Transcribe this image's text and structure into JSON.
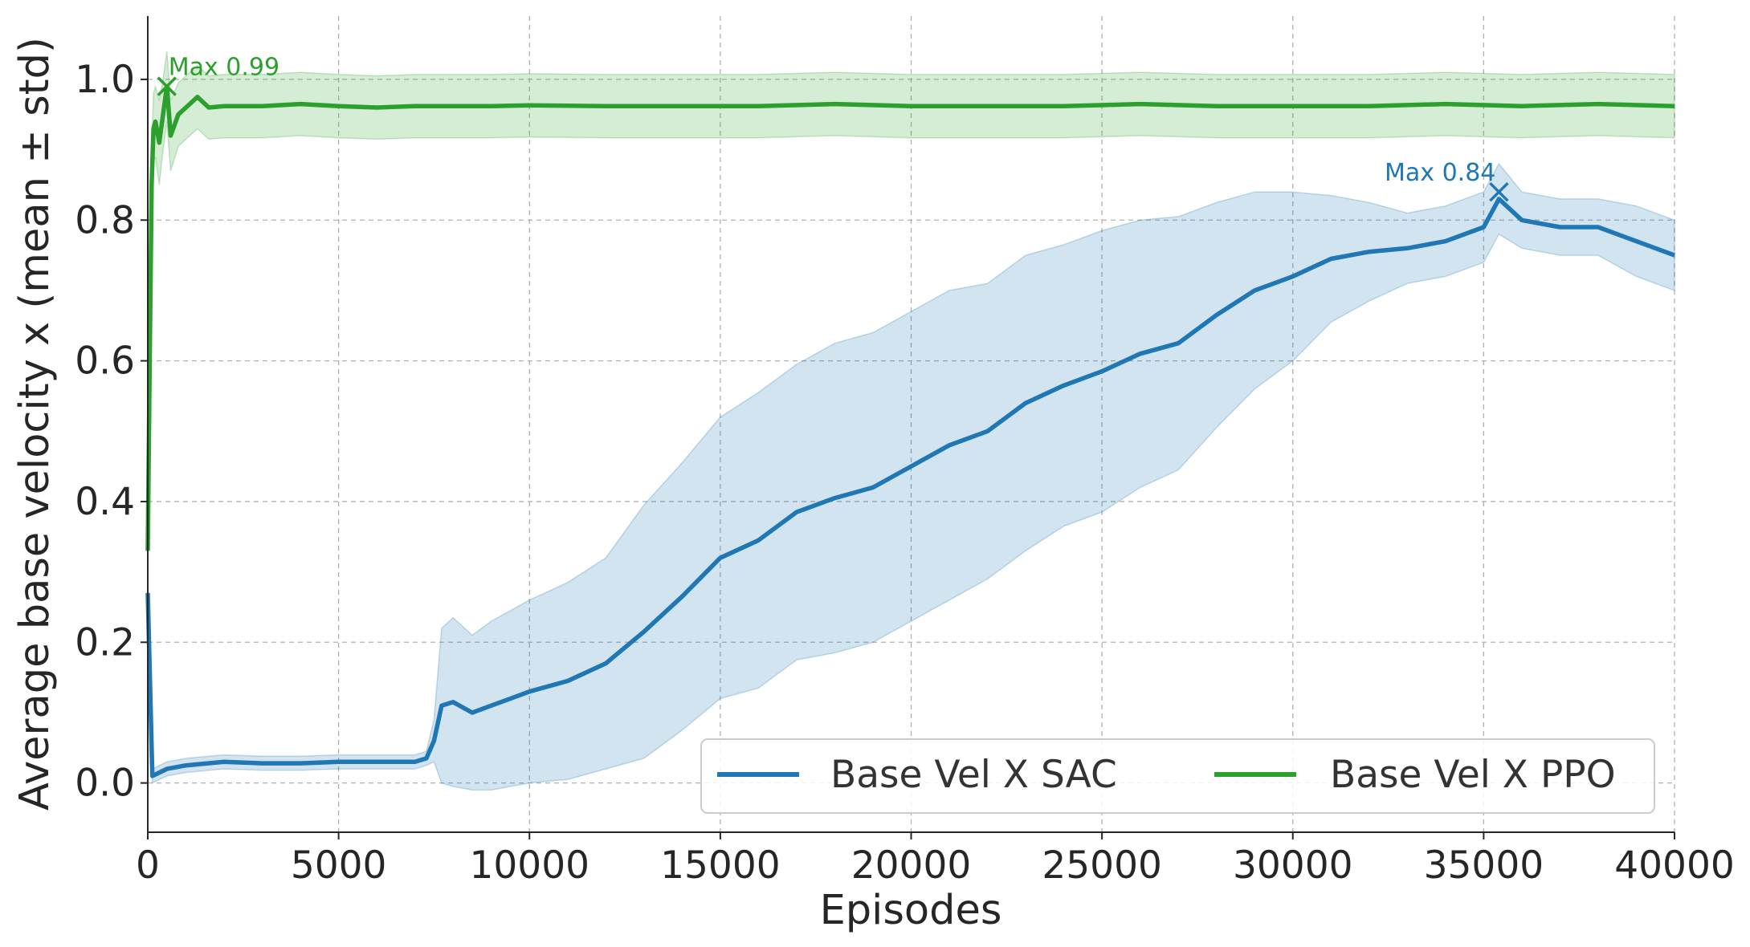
{
  "chart_data": {
    "type": "line",
    "title": "",
    "xlabel": "Episodes",
    "ylabel": "Average base velocity x (mean ± std)",
    "xlim": [
      0,
      40000
    ],
    "ylim": [
      -0.07,
      1.09
    ],
    "xticks": [
      0,
      5000,
      10000,
      15000,
      20000,
      25000,
      30000,
      35000,
      40000
    ],
    "xtick_labels": [
      "0",
      "5000",
      "10000",
      "15000",
      "20000",
      "25000",
      "30000",
      "35000",
      "40000"
    ],
    "yticks": [
      0.0,
      0.2,
      0.4,
      0.6,
      0.8,
      1.0
    ],
    "ytick_labels": [
      "0.0",
      "0.2",
      "0.4",
      "0.6",
      "0.8",
      "1.0"
    ],
    "grid": true,
    "legend_position": "bottom-right",
    "series": [
      {
        "name": "Base Vel X SAC",
        "color": "#1f77b4",
        "x": [
          0,
          120,
          500,
          1000,
          2000,
          3000,
          4000,
          5000,
          6000,
          7000,
          7300,
          7500,
          7700,
          8000,
          8500,
          9000,
          10000,
          11000,
          12000,
          13000,
          14000,
          15000,
          16000,
          17000,
          18000,
          19000,
          20000,
          21000,
          22000,
          23000,
          24000,
          25000,
          26000,
          27000,
          28000,
          29000,
          30000,
          31000,
          32000,
          33000,
          34000,
          35000,
          35400,
          36000,
          37000,
          38000,
          39000,
          40000
        ],
        "mean": [
          0.27,
          0.01,
          0.02,
          0.025,
          0.03,
          0.028,
          0.028,
          0.03,
          0.03,
          0.03,
          0.035,
          0.06,
          0.11,
          0.115,
          0.1,
          0.11,
          0.13,
          0.145,
          0.17,
          0.215,
          0.265,
          0.32,
          0.345,
          0.385,
          0.405,
          0.42,
          0.45,
          0.48,
          0.5,
          0.54,
          0.565,
          0.585,
          0.61,
          0.625,
          0.665,
          0.7,
          0.72,
          0.745,
          0.755,
          0.76,
          0.77,
          0.79,
          0.83,
          0.8,
          0.79,
          0.79,
          0.77,
          0.75
        ],
        "std": [
          0.0,
          0.01,
          0.01,
          0.01,
          0.01,
          0.01,
          0.01,
          0.01,
          0.01,
          0.01,
          0.01,
          0.03,
          0.11,
          0.12,
          0.11,
          0.12,
          0.13,
          0.14,
          0.15,
          0.18,
          0.19,
          0.2,
          0.21,
          0.21,
          0.22,
          0.22,
          0.22,
          0.22,
          0.21,
          0.21,
          0.2,
          0.2,
          0.19,
          0.18,
          0.16,
          0.14,
          0.12,
          0.09,
          0.07,
          0.05,
          0.05,
          0.05,
          0.05,
          0.04,
          0.04,
          0.04,
          0.05,
          0.05
        ],
        "max_label": "Max 0.84",
        "max_point": {
          "x": 35400,
          "y": 0.84
        }
      },
      {
        "name": "Base Vel X PPO",
        "color": "#2ca02c",
        "x": [
          0,
          50,
          100,
          150,
          200,
          300,
          400,
          500,
          600,
          800,
          1000,
          1300,
          1600,
          2000,
          3000,
          4000,
          5000,
          6000,
          7000,
          8000,
          9000,
          10000,
          12000,
          14000,
          16000,
          18000,
          20000,
          22000,
          24000,
          26000,
          28000,
          30000,
          32000,
          34000,
          36000,
          38000,
          40000
        ],
        "mean": [
          0.33,
          0.6,
          0.85,
          0.93,
          0.94,
          0.91,
          0.95,
          0.99,
          0.92,
          0.95,
          0.96,
          0.975,
          0.96,
          0.962,
          0.962,
          0.965,
          0.962,
          0.96,
          0.962,
          0.962,
          0.962,
          0.963,
          0.962,
          0.962,
          0.962,
          0.965,
          0.962,
          0.962,
          0.962,
          0.965,
          0.962,
          0.962,
          0.962,
          0.965,
          0.962,
          0.965,
          0.962
        ],
        "std": [
          0.0,
          0.03,
          0.05,
          0.05,
          0.05,
          0.06,
          0.05,
          0.05,
          0.05,
          0.045,
          0.045,
          0.045,
          0.045,
          0.045,
          0.045,
          0.045,
          0.045,
          0.045,
          0.045,
          0.045,
          0.045,
          0.045,
          0.045,
          0.045,
          0.045,
          0.045,
          0.045,
          0.045,
          0.045,
          0.045,
          0.045,
          0.045,
          0.045,
          0.045,
          0.045,
          0.045,
          0.045
        ],
        "max_label": "Max 0.99",
        "max_point": {
          "x": 500,
          "y": 0.99
        }
      }
    ]
  }
}
